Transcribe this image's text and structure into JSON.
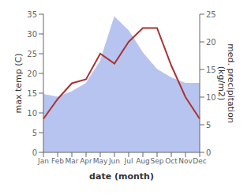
{
  "chart_data": {
    "type": "line",
    "categories": [
      "Jan",
      "Feb",
      "Mar",
      "Apr",
      "May",
      "Jun",
      "Jul",
      "Aug",
      "Sep",
      "Oct",
      "Nov",
      "Dec"
    ],
    "series": [
      {
        "type": "area",
        "axis": "y2",
        "color": "#b8c4f0",
        "values": [
          10.5,
          10.0,
          11.0,
          12.5,
          16.5,
          24.5,
          22.0,
          18.0,
          15.0,
          13.5,
          12.5,
          12.5
        ]
      },
      {
        "type": "line",
        "axis": "y",
        "color": "#aa3333",
        "values": [
          8.5,
          13.5,
          17.5,
          18.5,
          25.0,
          22.5,
          28.0,
          31.5,
          31.5,
          22.0,
          14.0,
          8.5
        ]
      }
    ],
    "xlabel": "date (month)",
    "ylabel": "max temp (C)",
    "y2label": "med. precipitation\n(kg/m2)",
    "ylim": [
      0,
      35
    ],
    "yticks": [
      0,
      5,
      10,
      15,
      20,
      25,
      30,
      35
    ],
    "y2lim": [
      0,
      25
    ],
    "y2ticks": [
      0,
      5,
      10,
      15,
      20,
      25
    ],
    "grid": false
  }
}
